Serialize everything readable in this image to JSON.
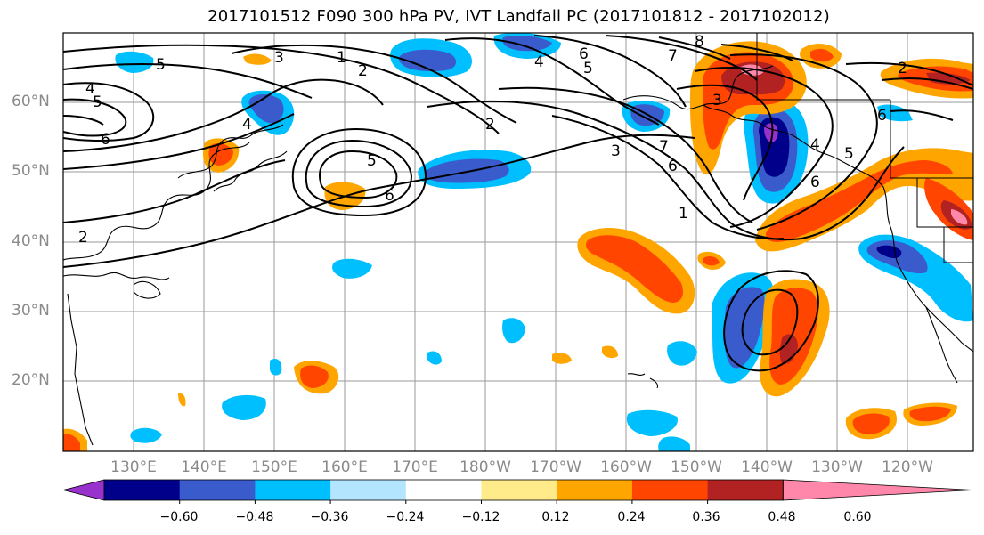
{
  "title": "2017101512 F090 300 hPa PV, IVT Landfall PC (2017101812 - 2017102012)",
  "lat_labels": [
    "60°N",
    "50°N",
    "40°N",
    "30°N",
    "20°N"
  ],
  "lon_labels": [
    "130°E",
    "140°E",
    "150°E",
    "160°E",
    "170°E",
    "180°W",
    "170°W",
    "160°W",
    "150°W",
    "140°W",
    "130°W",
    "120°W"
  ],
  "contour_labels": [
    "5",
    "3",
    "1",
    "2",
    "4",
    "5",
    "6",
    "4",
    "2",
    "3",
    "6",
    "5",
    "6",
    "7",
    "8",
    "7",
    "6",
    "5",
    "4",
    "2",
    "6",
    "2",
    "1",
    "3",
    "4",
    "5",
    "6"
  ],
  "colorbar": {
    "colors": [
      "#9932cc",
      "#00008b",
      "#3a5bcc",
      "#00bfff",
      "#b3e5ff",
      "#ffffff",
      "#ffeb8a",
      "#ffa500",
      "#ff4500",
      "#b22222",
      "#ff88aa"
    ],
    "tick_labels": [
      "−0.60",
      "−0.48",
      "−0.36",
      "−0.24",
      "−0.12",
      "0.12",
      "0.24",
      "0.36",
      "0.48",
      "0.60"
    ]
  }
}
